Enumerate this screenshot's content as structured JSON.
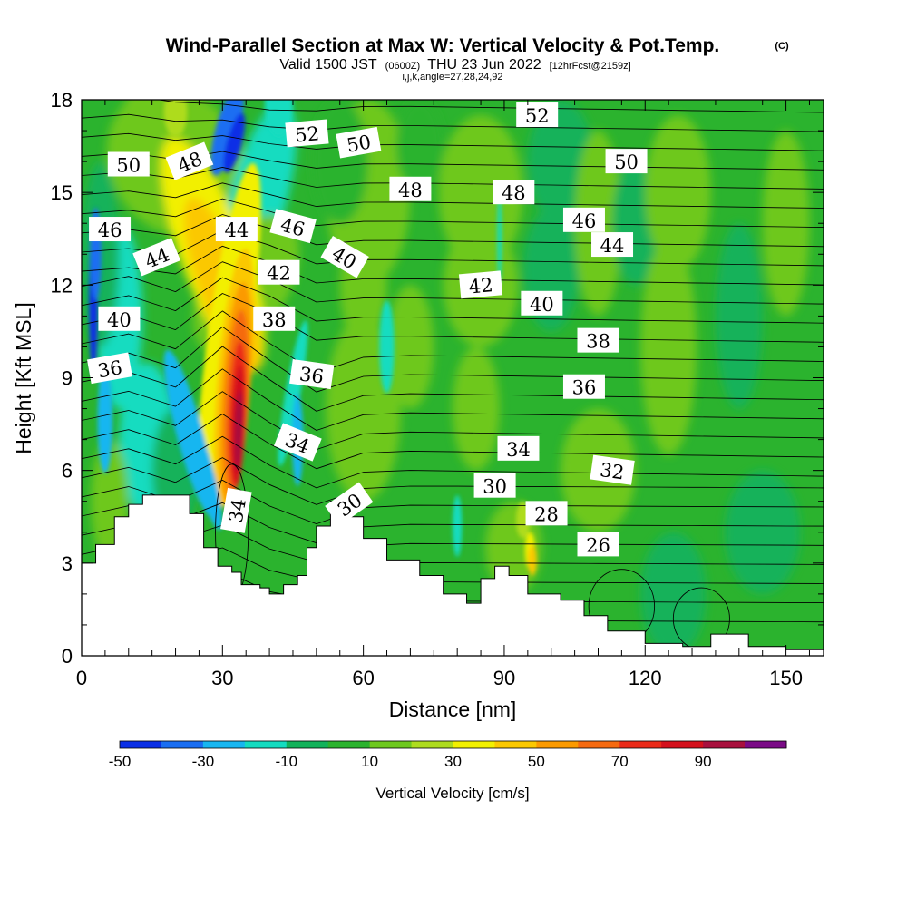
{
  "chart_data": {
    "type": "heatmap",
    "title": "Wind-Parallel Section at Max W: Vertical Velocity & Pot.Temp.",
    "title_mark": "(C)",
    "subtitle": {
      "valid_prefix": "Valid 1500 JST",
      "utc": "(0600Z)",
      "date": "THU 23 Jun 2022",
      "forecast": "[12hrFcst@2159z]",
      "indices": "i,j,k,angle=27,28,24,92"
    },
    "xlabel": "Distance [nm]",
    "ylabel": "Height [Kft MSL]",
    "xlim": [
      0,
      158
    ],
    "ylim": [
      0,
      18
    ],
    "x_ticks": [
      0,
      30,
      60,
      90,
      120,
      150
    ],
    "y_ticks": [
      0,
      3,
      6,
      9,
      12,
      15,
      18
    ],
    "grid": false,
    "colorbar": {
      "label": "Vertical Velocity [cm/s]",
      "tick_labels": [
        "-50",
        "-30",
        "-10",
        "10",
        "30",
        "50",
        "70",
        "90"
      ],
      "levels": [
        -50,
        -40,
        -30,
        -20,
        -10,
        0,
        10,
        20,
        30,
        40,
        50,
        60,
        70,
        80,
        90,
        100
      ],
      "colors": [
        "#0a2fe6",
        "#1a6ef2",
        "#18b6f0",
        "#14dcc0",
        "#12b25a",
        "#2bb32e",
        "#6ec81e",
        "#aedc1e",
        "#f2f000",
        "#fbc800",
        "#fb9a00",
        "#f56a10",
        "#ea2a18",
        "#d4101c",
        "#a8103e",
        "#7a0a86"
      ]
    },
    "contour_labels": [
      {
        "x": 10,
        "y": 15.9,
        "label": "50",
        "angle": 0
      },
      {
        "x": 23,
        "y": 16.0,
        "label": "48",
        "angle": -22
      },
      {
        "x": 6,
        "y": 13.8,
        "label": "46",
        "angle": 0
      },
      {
        "x": 16,
        "y": 12.9,
        "label": "44",
        "angle": -22
      },
      {
        "x": 33,
        "y": 13.8,
        "label": "44",
        "angle": 0
      },
      {
        "x": 48,
        "y": 16.9,
        "label": "52",
        "angle": -5
      },
      {
        "x": 59,
        "y": 16.6,
        "label": "50",
        "angle": -10
      },
      {
        "x": 70,
        "y": 15.1,
        "label": "48",
        "angle": 0
      },
      {
        "x": 97,
        "y": 17.5,
        "label": "52",
        "angle": 0
      },
      {
        "x": 92,
        "y": 15.0,
        "label": "48",
        "angle": 0
      },
      {
        "x": 116,
        "y": 16.0,
        "label": "50",
        "angle": 0
      },
      {
        "x": 45,
        "y": 13.9,
        "label": "46",
        "angle": 15
      },
      {
        "x": 107,
        "y": 14.1,
        "label": "46",
        "angle": 0
      },
      {
        "x": 113,
        "y": 13.3,
        "label": "44",
        "angle": 0
      },
      {
        "x": 42,
        "y": 12.4,
        "label": "42",
        "angle": 0
      },
      {
        "x": 85,
        "y": 12.0,
        "label": "42",
        "angle": -5
      },
      {
        "x": 41,
        "y": 10.9,
        "label": "38",
        "angle": 0
      },
      {
        "x": 98,
        "y": 11.4,
        "label": "40",
        "angle": 0
      },
      {
        "x": 8,
        "y": 10.9,
        "label": "40",
        "angle": 0
      },
      {
        "x": 6,
        "y": 9.3,
        "label": "36",
        "angle": -10
      },
      {
        "x": 110,
        "y": 10.2,
        "label": "38",
        "angle": 0
      },
      {
        "x": 49,
        "y": 9.1,
        "label": "36",
        "angle": 8
      },
      {
        "x": 107,
        "y": 8.7,
        "label": "36",
        "angle": 0
      },
      {
        "x": 46,
        "y": 6.9,
        "label": "34",
        "angle": 22
      },
      {
        "x": 93,
        "y": 6.7,
        "label": "34",
        "angle": 0
      },
      {
        "x": 113,
        "y": 6.0,
        "label": "32",
        "angle": 8
      },
      {
        "x": 88,
        "y": 5.5,
        "label": "30",
        "angle": 0
      },
      {
        "x": 99,
        "y": 4.6,
        "label": "28",
        "angle": 0
      },
      {
        "x": 110,
        "y": 3.6,
        "label": "26",
        "angle": 0
      },
      {
        "x": 33,
        "y": 4.7,
        "label": "34",
        "angle": -80
      },
      {
        "x": 57,
        "y": 4.9,
        "label": "30",
        "angle": -35
      },
      {
        "x": 56,
        "y": 12.9,
        "label": "40",
        "angle": 30
      }
    ],
    "terrain_height_kft": [
      [
        0,
        3.0
      ],
      [
        3,
        3.6
      ],
      [
        7,
        4.5
      ],
      [
        10,
        4.9
      ],
      [
        13,
        5.2
      ],
      [
        23,
        4.6
      ],
      [
        26,
        3.5
      ],
      [
        29,
        2.9
      ],
      [
        32,
        2.7
      ],
      [
        34,
        2.3
      ],
      [
        38,
        2.2
      ],
      [
        40,
        2.0
      ],
      [
        43,
        2.3
      ],
      [
        46,
        2.6
      ],
      [
        48,
        3.5
      ],
      [
        50,
        4.2
      ],
      [
        53,
        5.0
      ],
      [
        57,
        4.5
      ],
      [
        60,
        3.8
      ],
      [
        65,
        3.1
      ],
      [
        72,
        2.6
      ],
      [
        77,
        2.0
      ],
      [
        82,
        1.7
      ],
      [
        85,
        2.5
      ],
      [
        88,
        2.9
      ],
      [
        91,
        2.6
      ],
      [
        95,
        2.0
      ],
      [
        102,
        1.8
      ],
      [
        107,
        1.3
      ],
      [
        112,
        0.8
      ],
      [
        120,
        0.4
      ],
      [
        128,
        0.3
      ],
      [
        134,
        0.7
      ],
      [
        142,
        0.3
      ],
      [
        150,
        0.2
      ],
      [
        158,
        0.2
      ]
    ]
  }
}
